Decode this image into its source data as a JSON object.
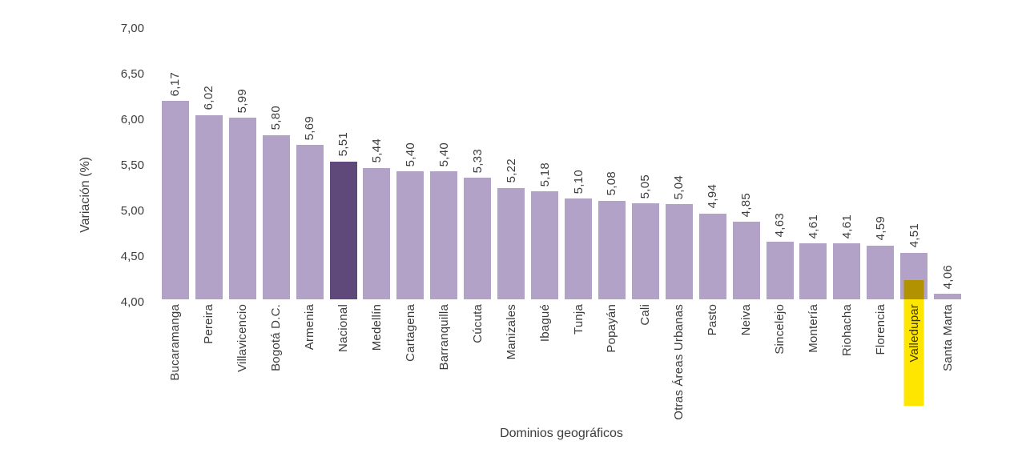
{
  "chart_data": {
    "type": "bar",
    "title": "",
    "xlabel": "Dominios geográficos",
    "ylabel": "Variación (%)",
    "ylim": [
      4.0,
      7.0
    ],
    "ytick_step": 0.5,
    "yticks": [
      "7,00",
      "6,50",
      "6,00",
      "5,50",
      "5,00",
      "4,50",
      "4,00"
    ],
    "grid": "off",
    "legend": "none",
    "categories": [
      "Bucaramanga",
      "Pereira",
      "Villavicencio",
      "Bogotá D.C.",
      "Armenia",
      "Nacional",
      "Medellín",
      "Cartagena",
      "Barranquilla",
      "Cúcuta",
      "Manizales",
      "Ibagué",
      "Tunja",
      "Popayán",
      "Cali",
      "Otras Áreas Urbanas",
      "Pasto",
      "Neiva",
      "Sincelejo",
      "Montería",
      "Riohacha",
      "Florencia",
      "Valledupar",
      "Santa Marta"
    ],
    "values": [
      6.17,
      6.02,
      5.99,
      5.8,
      5.69,
      5.51,
      5.44,
      5.4,
      5.4,
      5.33,
      5.22,
      5.18,
      5.1,
      5.08,
      5.05,
      5.04,
      4.94,
      4.85,
      4.63,
      4.61,
      4.61,
      4.59,
      4.51,
      4.06
    ],
    "value_labels": [
      "6,17",
      "6,02",
      "5,99",
      "5,80",
      "5,69",
      "5,51",
      "5,44",
      "5,40",
      "5,40",
      "5,33",
      "5,22",
      "5,18",
      "5,10",
      "5,08",
      "5,05",
      "5,04",
      "4,94",
      "4,85",
      "4,63",
      "4,61",
      "4,61",
      "4,59",
      "4,51",
      "4,06"
    ],
    "emphasis_category": "Nacional",
    "highlight_category": "Valledupar",
    "colors": {
      "bar": "#b2a2c7",
      "emphasis_bar": "#5f497a",
      "highlight": "#ffe600",
      "text": "#3c3c3c"
    }
  }
}
